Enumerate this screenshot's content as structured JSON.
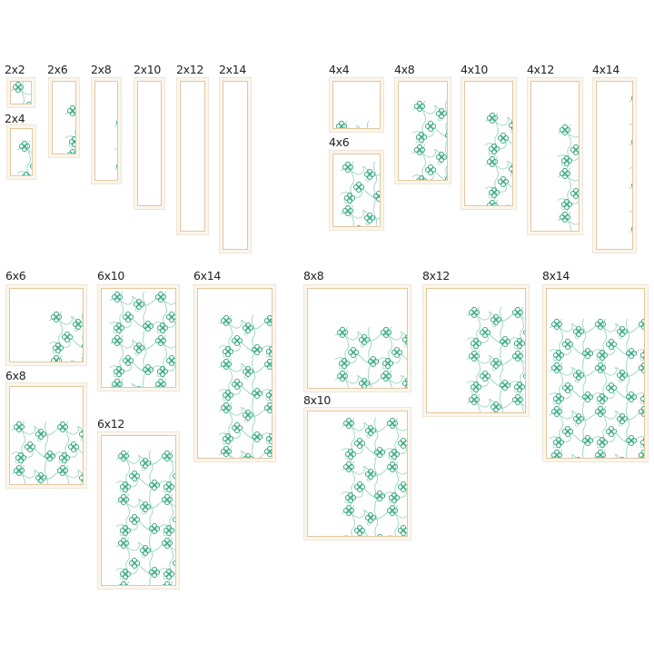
{
  "colors": {
    "clover": "#2fa57d",
    "swirl": "#8fcfbd",
    "frame_line": "#e3c79d",
    "frame_bg": "#fbf6ee"
  },
  "icons": {
    "motif": "shamrock-clover-swirl-pattern"
  },
  "designs": [
    {
      "label": "2x2"
    },
    {
      "label": "2x4"
    },
    {
      "label": "2x6"
    },
    {
      "label": "2x8"
    },
    {
      "label": "2x10"
    },
    {
      "label": "2x12"
    },
    {
      "label": "2x14"
    },
    {
      "label": "4x4"
    },
    {
      "label": "4x6"
    },
    {
      "label": "4x8"
    },
    {
      "label": "4x10"
    },
    {
      "label": "4x12"
    },
    {
      "label": "4x14"
    },
    {
      "label": "6x6"
    },
    {
      "label": "6x8"
    },
    {
      "label": "6x10"
    },
    {
      "label": "6x12"
    },
    {
      "label": "6x14"
    },
    {
      "label": "8x8"
    },
    {
      "label": "8x10"
    },
    {
      "label": "8x12"
    },
    {
      "label": "8x14"
    }
  ]
}
